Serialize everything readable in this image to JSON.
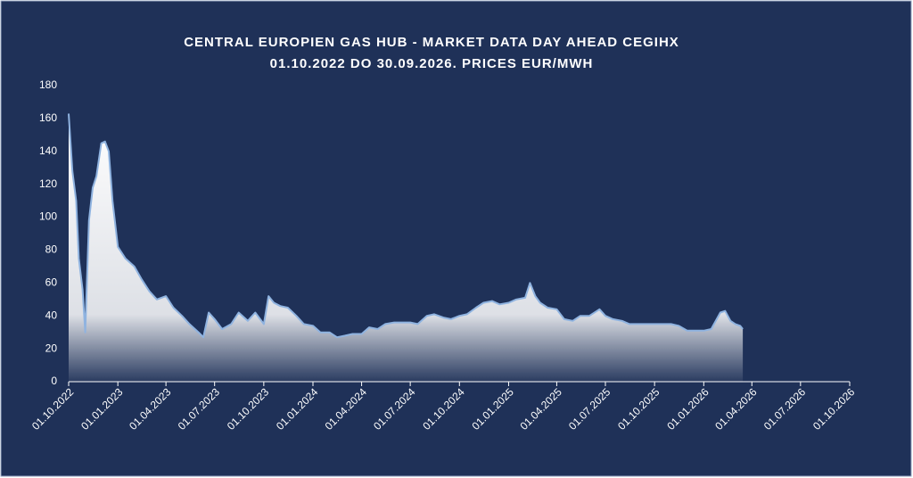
{
  "chart_data": {
    "type": "area",
    "title": "CENTRAL EUROPIEN GAS HUB - MARKET DATA DAY AHEAD CEGIHX",
    "subtitle": "01.10.2022 DO 30.09.2026. PRICES EUR/MWH",
    "x": [
      "01.10.2022",
      "08.10.2022",
      "15.10.2022",
      "20.10.2022",
      "27.10.2022",
      "01.11.2022",
      "08.11.2022",
      "15.11.2022",
      "22.11.2022",
      "01.12.2022",
      "08.12.2022",
      "15.12.2022",
      "22.12.2022",
      "01.01.2023",
      "15.01.2023",
      "01.02.2023",
      "15.02.2023",
      "01.03.2023",
      "15.03.2023",
      "01.04.2023",
      "15.04.2023",
      "01.05.2023",
      "15.05.2023",
      "01.06.2023",
      "10.06.2023",
      "20.06.2023",
      "01.07.2023",
      "15.07.2023",
      "01.08.2023",
      "15.08.2023",
      "01.09.2023",
      "15.09.2023",
      "01.10.2023",
      "10.10.2023",
      "20.10.2023",
      "01.11.2023",
      "15.11.2023",
      "01.12.2023",
      "15.12.2023",
      "01.01.2024",
      "15.01.2024",
      "01.02.2024",
      "15.02.2024",
      "01.03.2024",
      "15.03.2024",
      "01.04.2024",
      "15.04.2024",
      "01.05.2024",
      "15.05.2024",
      "01.06.2024",
      "15.06.2024",
      "01.07.2024",
      "15.07.2024",
      "01.08.2024",
      "15.08.2024",
      "01.09.2024",
      "15.09.2024",
      "01.10.2024",
      "15.10.2024",
      "01.11.2024",
      "15.11.2024",
      "01.12.2024",
      "15.12.2024",
      "01.01.2025",
      "15.01.2025",
      "01.02.2025",
      "10.02.2025",
      "20.02.2025",
      "01.03.2025",
      "15.03.2025",
      "01.04.2025",
      "15.04.2025",
      "01.05.2025",
      "15.05.2025",
      "01.06.2025",
      "20.06.2025",
      "01.07.2025",
      "15.07.2025",
      "01.08.2025",
      "15.08.2025",
      "01.09.2025",
      "15.09.2025",
      "01.10.2025",
      "15.10.2025",
      "01.11.2025",
      "15.11.2025",
      "01.12.2025",
      "15.12.2025",
      "01.01.2026",
      "15.01.2026",
      "01.02.2026",
      "10.02.2026",
      "20.02.2026",
      "01.03.2026",
      "10.03.2026",
      "15.03.2026"
    ],
    "values": [
      163,
      128,
      110,
      75,
      56,
      30,
      98,
      118,
      125,
      145,
      146,
      140,
      110,
      82,
      75,
      70,
      62,
      55,
      50,
      52,
      45,
      40,
      35,
      30,
      27,
      42,
      38,
      32,
      35,
      42,
      37,
      42,
      35,
      52,
      48,
      46,
      45,
      40,
      35,
      34,
      30,
      30,
      27,
      28,
      29,
      29,
      33,
      32,
      35,
      36,
      36,
      36,
      35,
      40,
      41,
      39,
      38,
      40,
      41,
      45,
      48,
      49,
      47,
      48,
      50,
      51,
      60,
      52,
      48,
      45,
      44,
      38,
      37,
      40,
      40,
      44,
      40,
      38,
      37,
      35,
      35,
      35,
      35,
      35,
      35,
      34,
      31,
      31,
      31,
      32,
      42,
      43,
      37,
      35,
      34,
      32
    ],
    "color": "#ffffff",
    "xlim": [
      "01.10.2022",
      "01.10.2026"
    ],
    "xticks": [
      "01.10.2022",
      "01.01.2023",
      "01.04.2023",
      "01.07.2023",
      "01.10.2023",
      "01.01.2024",
      "01.04.2024",
      "01.07.2024",
      "01.10.2024",
      "01.01.2025",
      "01.04.2025",
      "01.07.2025",
      "01.10.2025",
      "01.01.2026",
      "01.04.2026",
      "01.07.2026",
      "01.10.2026"
    ],
    "ylim": [
      0,
      180
    ],
    "yticks": [
      0,
      20,
      40,
      60,
      80,
      100,
      120,
      140,
      160,
      180
    ]
  }
}
